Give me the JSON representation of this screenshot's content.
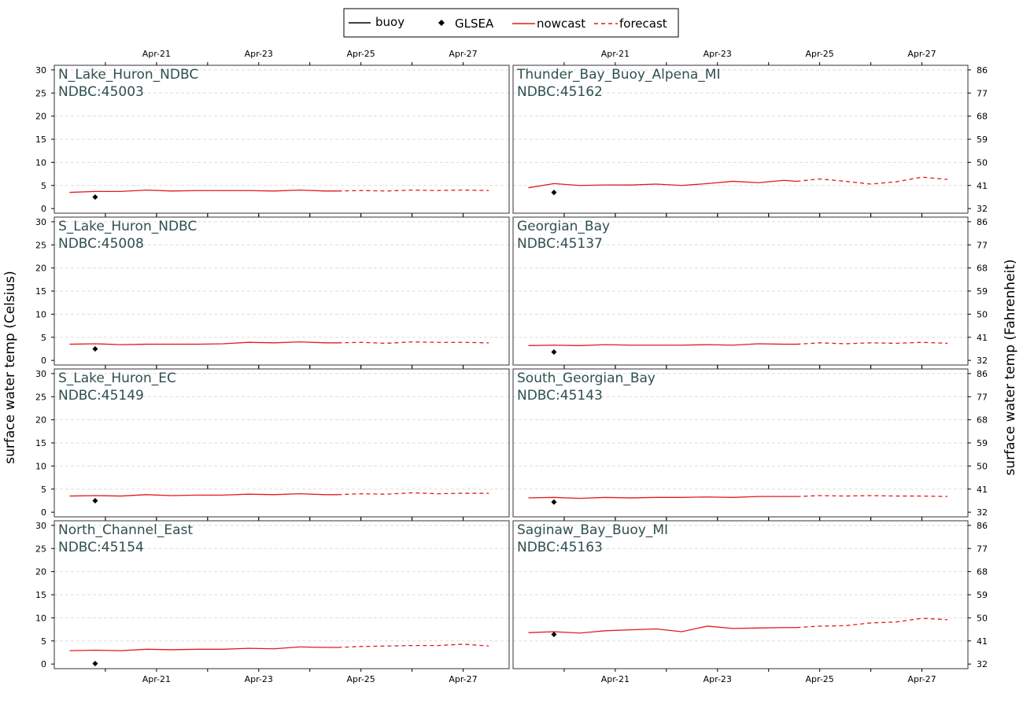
{
  "legend": {
    "items": [
      {
        "label": "buoy",
        "style": "solid",
        "color": "#000000"
      },
      {
        "label": "GLSEA",
        "style": "diamond",
        "color": "#000000"
      },
      {
        "label": "nowcast",
        "style": "solid",
        "color": "#e31a1c"
      },
      {
        "label": "forecast",
        "style": "dashed",
        "color": "#e31a1c"
      }
    ]
  },
  "axes": {
    "left_label": "surface water temp (Celsius)",
    "right_label": "surface water temp (Fahrenheit)"
  },
  "colors": {
    "nowcast": "#e31a1c",
    "forecast": "#e31a1c",
    "glsea": "#000000",
    "title": "#2f4f4f",
    "grid": "#dddddd"
  },
  "chart_data": {
    "type": "line",
    "x_ticks": [
      "Apr-21",
      "Apr-23",
      "Apr-25",
      "Apr-27"
    ],
    "x_tick_values": [
      21,
      23,
      25,
      27
    ],
    "x_range": [
      19.0,
      27.9
    ],
    "forecast_start": 24.55,
    "celsius_ticks": [
      0,
      5,
      10,
      15,
      20,
      25,
      30
    ],
    "fahrenheit_ticks": [
      32,
      41,
      50,
      59,
      68,
      77,
      86
    ],
    "ylim": [
      -1,
      31
    ],
    "grid": true,
    "legend_position": "top-center",
    "panels": [
      {
        "title": "N_Lake_Huron_NDBC",
        "station": "NDBC:45003",
        "glsea": {
          "x": 19.8,
          "y": 2.5
        },
        "nowcast": {
          "x": [
            19.3,
            19.8,
            20.3,
            20.8,
            21.3,
            21.8,
            22.3,
            22.8,
            23.3,
            23.8,
            24.3,
            24.55
          ],
          "y": [
            3.5,
            3.7,
            3.7,
            4.0,
            3.8,
            3.9,
            3.9,
            3.9,
            3.8,
            4.0,
            3.8,
            3.8
          ]
        },
        "forecast": {
          "x": [
            24.55,
            25.0,
            25.5,
            26.0,
            26.5,
            27.0,
            27.5
          ],
          "y": [
            3.8,
            3.9,
            3.8,
            4.0,
            3.9,
            4.0,
            3.9
          ]
        }
      },
      {
        "title": "Thunder_Bay_Buoy_Alpena_MI",
        "station": "NDBC:45162",
        "glsea": {
          "x": 19.8,
          "y": 3.5
        },
        "nowcast": {
          "x": [
            19.3,
            19.8,
            20.3,
            20.8,
            21.3,
            21.8,
            22.3,
            22.8,
            23.3,
            23.8,
            24.3,
            24.55
          ],
          "y": [
            4.5,
            5.4,
            5.0,
            5.1,
            5.1,
            5.3,
            5.0,
            5.4,
            5.9,
            5.6,
            6.1,
            5.9
          ]
        },
        "forecast": {
          "x": [
            24.55,
            25.0,
            25.5,
            26.0,
            26.5,
            27.0,
            27.5
          ],
          "y": [
            5.9,
            6.4,
            5.9,
            5.3,
            5.8,
            6.8,
            6.3
          ]
        }
      },
      {
        "title": "S_Lake_Huron_NDBC",
        "station": "NDBC:45008",
        "glsea": {
          "x": 19.8,
          "y": 2.5
        },
        "nowcast": {
          "x": [
            19.3,
            19.8,
            20.3,
            20.8,
            21.3,
            21.8,
            22.3,
            22.8,
            23.3,
            23.8,
            24.3,
            24.55
          ],
          "y": [
            3.5,
            3.6,
            3.4,
            3.5,
            3.5,
            3.5,
            3.6,
            3.9,
            3.8,
            4.0,
            3.8,
            3.8
          ]
        },
        "forecast": {
          "x": [
            24.55,
            25.0,
            25.5,
            26.0,
            26.5,
            27.0,
            27.5
          ],
          "y": [
            3.8,
            3.9,
            3.7,
            4.0,
            3.9,
            3.9,
            3.8
          ]
        }
      },
      {
        "title": "Georgian_Bay",
        "station": "NDBC:45137",
        "glsea": {
          "x": 19.8,
          "y": 1.8
        },
        "nowcast": {
          "x": [
            19.3,
            19.8,
            20.3,
            20.8,
            21.3,
            21.8,
            22.3,
            22.8,
            23.3,
            23.8,
            24.3,
            24.55
          ],
          "y": [
            3.2,
            3.3,
            3.2,
            3.4,
            3.3,
            3.3,
            3.3,
            3.4,
            3.3,
            3.6,
            3.5,
            3.5
          ]
        },
        "forecast": {
          "x": [
            24.55,
            25.0,
            25.5,
            26.0,
            26.5,
            27.0,
            27.5
          ],
          "y": [
            3.5,
            3.8,
            3.6,
            3.8,
            3.7,
            3.9,
            3.7
          ]
        }
      },
      {
        "title": "S_Lake_Huron_EC",
        "station": "NDBC:45149",
        "glsea": {
          "x": 19.8,
          "y": 2.5
        },
        "nowcast": {
          "x": [
            19.3,
            19.8,
            20.3,
            20.8,
            21.3,
            21.8,
            22.3,
            22.8,
            23.3,
            23.8,
            24.3,
            24.55
          ],
          "y": [
            3.5,
            3.6,
            3.5,
            3.8,
            3.6,
            3.7,
            3.7,
            3.9,
            3.8,
            4.0,
            3.8,
            3.8
          ]
        },
        "forecast": {
          "x": [
            24.55,
            25.0,
            25.5,
            26.0,
            26.5,
            27.0,
            27.5
          ],
          "y": [
            3.8,
            4.0,
            3.9,
            4.2,
            4.0,
            4.1,
            4.1
          ]
        }
      },
      {
        "title": "South_Georgian_Bay",
        "station": "NDBC:45143",
        "glsea": {
          "x": 19.8,
          "y": 2.2
        },
        "nowcast": {
          "x": [
            19.3,
            19.8,
            20.3,
            20.8,
            21.3,
            21.8,
            22.3,
            22.8,
            23.3,
            23.8,
            24.3,
            24.55
          ],
          "y": [
            3.1,
            3.2,
            3.0,
            3.2,
            3.1,
            3.2,
            3.2,
            3.3,
            3.2,
            3.4,
            3.4,
            3.4
          ]
        },
        "forecast": {
          "x": [
            24.55,
            25.0,
            25.5,
            26.0,
            26.5,
            27.0,
            27.5
          ],
          "y": [
            3.4,
            3.6,
            3.5,
            3.6,
            3.5,
            3.5,
            3.4
          ]
        }
      },
      {
        "title": "North_Channel_East",
        "station": "NDBC:45154",
        "glsea": {
          "x": 19.8,
          "y": 0.1
        },
        "nowcast": {
          "x": [
            19.3,
            19.8,
            20.3,
            20.8,
            21.3,
            21.8,
            22.3,
            22.8,
            23.3,
            23.8,
            24.3,
            24.55
          ],
          "y": [
            2.9,
            3.0,
            2.9,
            3.2,
            3.1,
            3.2,
            3.2,
            3.4,
            3.3,
            3.7,
            3.6,
            3.6
          ]
        },
        "forecast": {
          "x": [
            24.55,
            25.0,
            25.5,
            26.0,
            26.5,
            27.0,
            27.5
          ],
          "y": [
            3.6,
            3.8,
            3.9,
            4.0,
            4.0,
            4.3,
            3.9
          ]
        }
      },
      {
        "title": "Saginaw_Bay_Buoy_MI",
        "station": "NDBC:45163",
        "glsea": {
          "x": 19.8,
          "y": 6.4
        },
        "nowcast": {
          "x": [
            19.3,
            19.8,
            20.3,
            20.8,
            21.3,
            21.8,
            22.3,
            22.8,
            23.3,
            23.8,
            24.3,
            24.55
          ],
          "y": [
            6.8,
            7.0,
            6.7,
            7.2,
            7.4,
            7.6,
            7.0,
            8.2,
            7.7,
            7.8,
            7.9,
            7.9
          ]
        },
        "forecast": {
          "x": [
            24.55,
            25.0,
            25.5,
            26.0,
            26.5,
            27.0,
            27.5
          ],
          "y": [
            7.9,
            8.2,
            8.3,
            8.9,
            9.1,
            9.9,
            9.6
          ]
        }
      }
    ]
  }
}
